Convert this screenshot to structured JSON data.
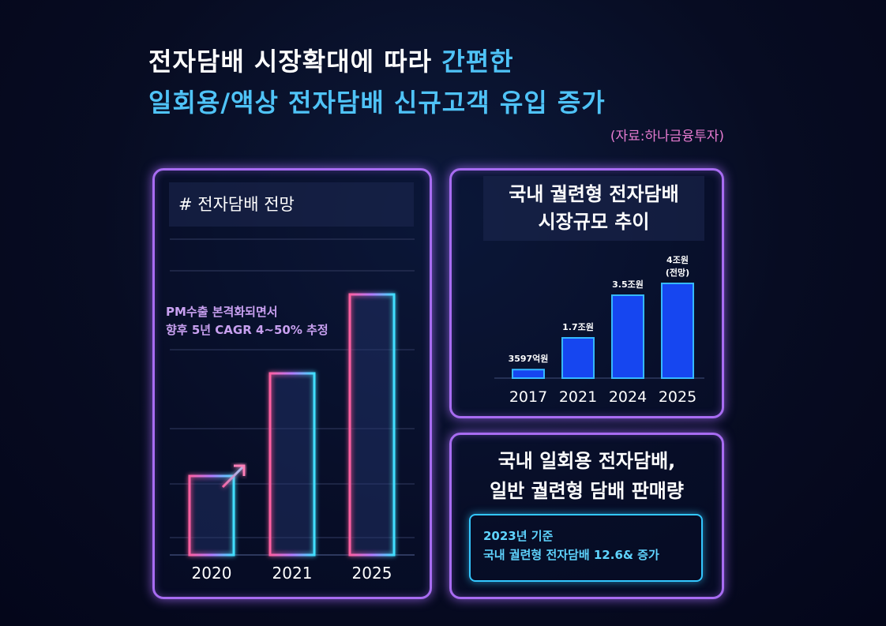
{
  "header": {
    "title_line1": "전자담배 시장확대에 따라 ",
    "title_line1_highlight": "간편한",
    "title_line2": "일회용/액상 전자담배 신규고객 유입 증가",
    "source": "(자료:하나금융투자)"
  },
  "left_panel": {
    "title": "# 전자담배 전망",
    "annotation_line1": "PM수출 본격화되면서",
    "annotation_line2": "향후 5년 CAGR 4~50% 추정"
  },
  "right_top_panel": {
    "title_line1": "국내 궐련형 전자담배",
    "title_line2": "시장규모 추이"
  },
  "right_bottom_panel": {
    "title_line1": "국내 일회용 전자담배,",
    "title_line2": "일반 궐련형 담배 판매량",
    "note_line1": "2023년 기준",
    "note_line2": "국내 궐련형 전자담배 12.6& 증가"
  },
  "colors": {
    "panel_border": "#a86cf2",
    "bar_fill": "#1646f0",
    "bar_border": "#35b8ff",
    "neon_pink": "#ff5fa0",
    "neon_cyan": "#3fe0ff",
    "highlight": "#4fc3f7"
  },
  "chart_data": [
    {
      "type": "bar",
      "title": "# 전자담배 전망",
      "categories": [
        "2020",
        "2021",
        "2025"
      ],
      "values": [
        1,
        2.3,
        3.3
      ],
      "ylim": [
        0,
        4.2
      ],
      "grid": true
    },
    {
      "type": "bar",
      "title": "국내 궐련형 전자담배 시장규모 추이",
      "categories": [
        "2017",
        "2021",
        "2024",
        "2025"
      ],
      "values": [
        0.3597,
        1.7,
        3.5,
        4.0
      ],
      "data_labels": [
        "3597억원",
        "1.7조원",
        "3.5조원",
        "4조원"
      ],
      "data_label_sub": [
        "",
        "",
        "",
        "(전망)"
      ],
      "ylim": [
        0,
        5.0
      ]
    }
  ]
}
